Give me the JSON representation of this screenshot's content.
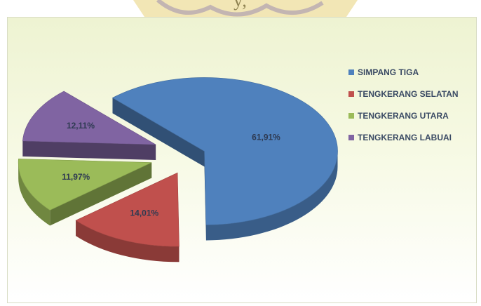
{
  "header_text": "y, ",
  "colors": {
    "simpang": "#4f81bd",
    "selatan": "#c0504d",
    "utara": "#9bbb59",
    "labuai": "#8064a2"
  },
  "chart_data": {
    "type": "pie",
    "title": "",
    "categories": [
      "SIMPANG TIGA",
      "TENGKERANG SELATAN",
      "TENGKERANG UTARA",
      "TENGKERANG LABUAI"
    ],
    "values": [
      61.91,
      14.01,
      11.97,
      12.11
    ],
    "labels": [
      "61,91%",
      "14,01%",
      "11,97%",
      "12,11%"
    ],
    "exploded": true,
    "three_d": true,
    "legend_position": "right"
  }
}
